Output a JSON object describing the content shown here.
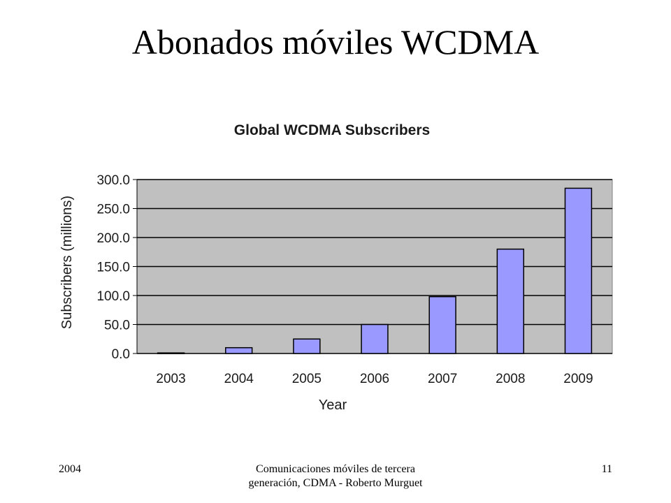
{
  "slide": {
    "title": "Abonados móviles WCDMA",
    "footer": {
      "year": "2004",
      "course": "Comunicaciones móviles de tercera generación, CDMA - Roberto Murguet",
      "page_number": "11"
    }
  },
  "colors": {
    "plot_background": "#c0c0c0",
    "bar_fill": "#9999ff",
    "bar_stroke": "#000000",
    "grid": "#000000"
  },
  "chart_data": {
    "type": "bar",
    "title": "Global WCDMA Subscribers",
    "xlabel": "Year",
    "ylabel": "Subscribers (millions)",
    "categories": [
      "2003",
      "2004",
      "2005",
      "2006",
      "2007",
      "2008",
      "2009"
    ],
    "values": [
      1,
      10,
      25,
      50,
      98,
      180,
      285
    ],
    "ylim": [
      0,
      300
    ],
    "yticks": [
      0,
      50,
      100,
      150,
      200,
      250,
      300
    ],
    "ytick_labels": [
      "0.0",
      "50.0",
      "100.0",
      "150.0",
      "200.0",
      "250.0",
      "300.0"
    ],
    "grid": true,
    "legend": "none"
  }
}
